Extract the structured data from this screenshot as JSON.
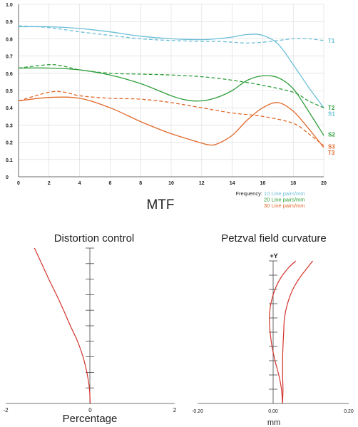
{
  "colors": {
    "blue": "#6bbfd8",
    "green": "#2e9e3a",
    "orange": "#e1692a",
    "red": "#d2332b",
    "axis": "#444444",
    "grid": "#d9d9d9",
    "text": "#222222"
  },
  "chart_data": [
    {
      "type": "line",
      "title": "MTF",
      "xlim": [
        0,
        20
      ],
      "ylim": [
        0,
        1.0
      ],
      "grid": true,
      "x_ticks": [
        "0",
        "2",
        "4",
        "6",
        "8",
        "10",
        "12",
        "14",
        "16",
        "18",
        "20"
      ],
      "y_ticks": [
        "0",
        "0.1",
        "0.2",
        "0.3",
        "0.4",
        "0.5",
        "0.6",
        "0.7",
        "0.8",
        "0.9",
        "1.0"
      ],
      "legend": {
        "prefix": "Frequency:",
        "entries": [
          {
            "label": "10 Line pairs/mm",
            "color": "#6bbfd8"
          },
          {
            "label": "20 Line pairs/mm",
            "color": "#2e9e3a"
          },
          {
            "label": "30 Line pairs/mm",
            "color": "#e1692a"
          }
        ]
      },
      "series": [
        {
          "name": "S1",
          "color": "#6bbfd8",
          "dashed": false,
          "points": [
            [
              0,
              0.87
            ],
            [
              2,
              0.87
            ],
            [
              4,
              0.86
            ],
            [
              6,
              0.84
            ],
            [
              8,
              0.815
            ],
            [
              10,
              0.8
            ],
            [
              12,
              0.795
            ],
            [
              13,
              0.8
            ],
            [
              14,
              0.81
            ],
            [
              15,
              0.825
            ],
            [
              16,
              0.82
            ],
            [
              17,
              0.77
            ],
            [
              18,
              0.65
            ],
            [
              19,
              0.52
            ],
            [
              20,
              0.4
            ]
          ]
        },
        {
          "name": "T1",
          "color": "#6bbfd8",
          "dashed": true,
          "points": [
            [
              0,
              0.875
            ],
            [
              2,
              0.865
            ],
            [
              4,
              0.84
            ],
            [
              6,
              0.82
            ],
            [
              8,
              0.8
            ],
            [
              10,
              0.79
            ],
            [
              12,
              0.785
            ],
            [
              13,
              0.785
            ],
            [
              14,
              0.78
            ],
            [
              15,
              0.775
            ],
            [
              16,
              0.78
            ],
            [
              17,
              0.79
            ],
            [
              18,
              0.8
            ],
            [
              19,
              0.8
            ],
            [
              20,
              0.79
            ]
          ]
        },
        {
          "name": "S2",
          "color": "#2e9e3a",
          "dashed": false,
          "points": [
            [
              0,
              0.63
            ],
            [
              2,
              0.63
            ],
            [
              4,
              0.62
            ],
            [
              6,
              0.59
            ],
            [
              8,
              0.54
            ],
            [
              10,
              0.47
            ],
            [
              11,
              0.445
            ],
            [
              12,
              0.44
            ],
            [
              13,
              0.46
            ],
            [
              14,
              0.5
            ],
            [
              15,
              0.56
            ],
            [
              16,
              0.585
            ],
            [
              17,
              0.575
            ],
            [
              18,
              0.51
            ],
            [
              19,
              0.38
            ],
            [
              20,
              0.24
            ]
          ]
        },
        {
          "name": "T2",
          "color": "#2e9e3a",
          "dashed": true,
          "points": [
            [
              0,
              0.63
            ],
            [
              2,
              0.65
            ],
            [
              3,
              0.64
            ],
            [
              4,
              0.62
            ],
            [
              6,
              0.6
            ],
            [
              8,
              0.595
            ],
            [
              10,
              0.59
            ],
            [
              12,
              0.58
            ],
            [
              14,
              0.56
            ],
            [
              16,
              0.53
            ],
            [
              18,
              0.49
            ],
            [
              19,
              0.44
            ],
            [
              20,
              0.4
            ]
          ]
        },
        {
          "name": "S3",
          "color": "#e1692a",
          "dashed": false,
          "points": [
            [
              0,
              0.44
            ],
            [
              2,
              0.46
            ],
            [
              4,
              0.455
            ],
            [
              6,
              0.4
            ],
            [
              8,
              0.32
            ],
            [
              10,
              0.25
            ],
            [
              12,
              0.195
            ],
            [
              12.5,
              0.185
            ],
            [
              13,
              0.19
            ],
            [
              14,
              0.24
            ],
            [
              15,
              0.33
            ],
            [
              16,
              0.4
            ],
            [
              17,
              0.43
            ],
            [
              18,
              0.38
            ],
            [
              19,
              0.28
            ],
            [
              20,
              0.17
            ]
          ]
        },
        {
          "name": "T3",
          "color": "#e1692a",
          "dashed": true,
          "points": [
            [
              0,
              0.44
            ],
            [
              2,
              0.49
            ],
            [
              3,
              0.49
            ],
            [
              4,
              0.47
            ],
            [
              6,
              0.455
            ],
            [
              8,
              0.45
            ],
            [
              10,
              0.43
            ],
            [
              12,
              0.4
            ],
            [
              14,
              0.37
            ],
            [
              16,
              0.35
            ],
            [
              18,
              0.31
            ],
            [
              19,
              0.25
            ],
            [
              20,
              0.18
            ]
          ]
        }
      ],
      "series_labels": [
        {
          "text": "T1",
          "color": "#6bbfd8",
          "y": 0.79
        },
        {
          "text": "T2",
          "color": "#2e9e3a",
          "y": 0.4
        },
        {
          "text": "S1",
          "color": "#6bbfd8",
          "y": 0.365
        },
        {
          "text": "S2",
          "color": "#2e9e3a",
          "y": 0.245
        },
        {
          "text": "S3",
          "color": "#e1692a",
          "y": 0.175
        },
        {
          "text": "T3",
          "color": "#e1692a",
          "y": 0.14
        }
      ]
    },
    {
      "type": "line",
      "title": "Distortion control",
      "xlabel": "Percentage",
      "xlim": [
        -2,
        2
      ],
      "ylim": [
        0,
        1
      ],
      "x_ticks": [
        "-2",
        "0",
        "2"
      ],
      "series": [
        {
          "color": "#d2332b",
          "dashed": false,
          "points": [
            [
              0,
              0
            ],
            [
              -0.02,
              0.1
            ],
            [
              -0.08,
              0.2
            ],
            [
              -0.17,
              0.3
            ],
            [
              -0.3,
              0.4
            ],
            [
              -0.47,
              0.5
            ],
            [
              -0.63,
              0.6
            ],
            [
              -0.8,
              0.7
            ],
            [
              -0.98,
              0.8
            ],
            [
              -1.15,
              0.9
            ],
            [
              -1.32,
              1.0
            ]
          ]
        }
      ]
    },
    {
      "type": "line",
      "title": "Petzval field curvature",
      "xlabel": "mm",
      "ylabel": "+Y",
      "xlim": [
        -0.2,
        0.2
      ],
      "ylim": [
        0,
        1
      ],
      "x_ticks": [
        "-0.20",
        "0.00",
        "0.20"
      ],
      "series": [
        {
          "color": "#d2332b",
          "dashed": false,
          "points": [
            [
              0.025,
              0
            ],
            [
              0.022,
              0.1
            ],
            [
              0.015,
              0.2
            ],
            [
              0.005,
              0.3
            ],
            [
              -0.003,
              0.4
            ],
            [
              -0.008,
              0.5
            ],
            [
              -0.01,
              0.6
            ],
            [
              -0.006,
              0.7
            ],
            [
              0.005,
              0.8
            ],
            [
              0.02,
              0.88
            ],
            [
              0.04,
              0.95
            ],
            [
              0.06,
              1.0
            ]
          ]
        },
        {
          "color": "#d2332b",
          "dashed": false,
          "points": [
            [
              0.025,
              0
            ],
            [
              0.026,
              0.1
            ],
            [
              0.025,
              0.2
            ],
            [
              0.025,
              0.3
            ],
            [
              0.026,
              0.4
            ],
            [
              0.028,
              0.5
            ],
            [
              0.03,
              0.6
            ],
            [
              0.038,
              0.7
            ],
            [
              0.052,
              0.8
            ],
            [
              0.07,
              0.88
            ],
            [
              0.09,
              0.95
            ],
            [
              0.105,
              1.0
            ]
          ]
        }
      ]
    }
  ]
}
